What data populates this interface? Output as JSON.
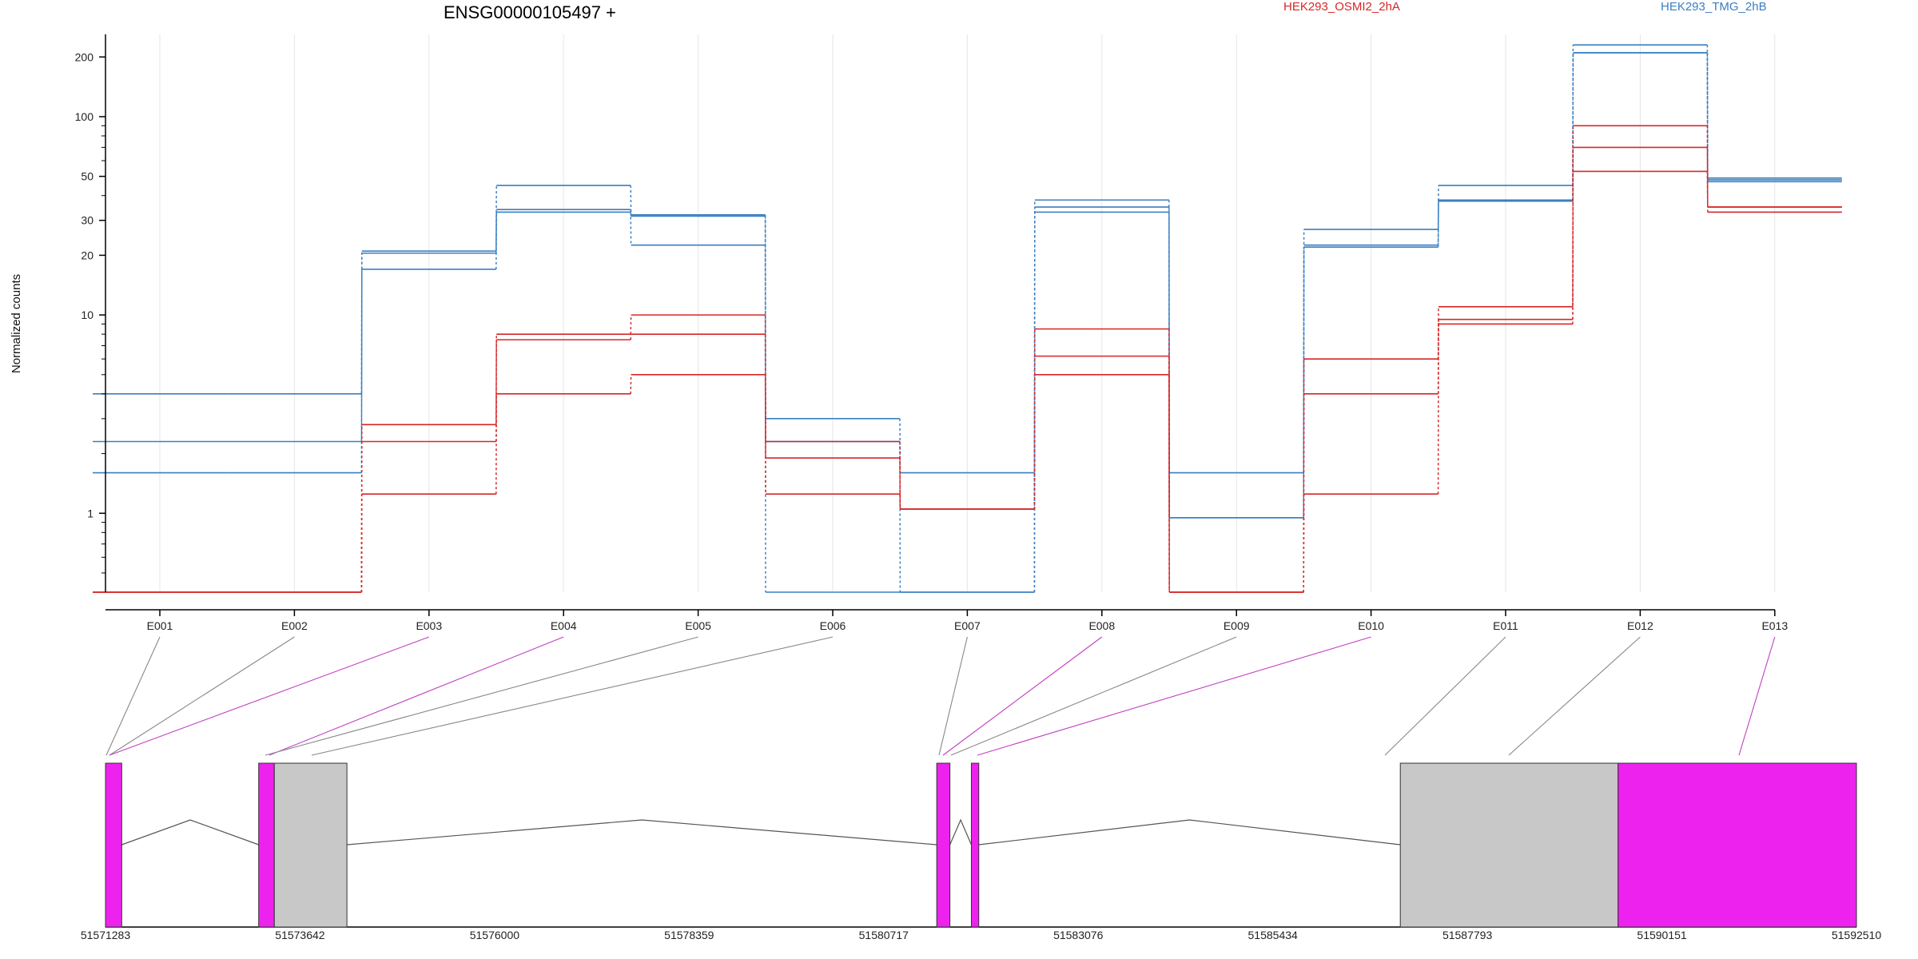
{
  "chart_data": {
    "type": "line",
    "title": "ENSG00000105497 +",
    "ylabel": "Normalized counts",
    "y_scale": "log",
    "ylim": [
      0.4,
      260
    ],
    "y_ticks": [
      1,
      10,
      20,
      30,
      50,
      100,
      200
    ],
    "grid": "vertical",
    "legend_placement": "top",
    "colors": {
      "HEK293_OSMI2_2hA": "#d62728",
      "HEK293_TMG_2hB": "#3a7fc1"
    },
    "categories": [
      "E001",
      "E002",
      "E003",
      "E004",
      "E005",
      "E006",
      "E007",
      "E008",
      "E009",
      "E010",
      "E011",
      "E012",
      "E013"
    ],
    "series": [
      {
        "name": "HEK293_TMG_2hB",
        "values": [
          4.0,
          4.0,
          21,
          45,
          32,
          3.0,
          1.6,
          38,
          0.95,
          27,
          45,
          230,
          49
        ]
      },
      {
        "name": "HEK293_TMG_2hB",
        "values": [
          2.3,
          2.3,
          20.5,
          34,
          31.5,
          2.3,
          0.4,
          35,
          0.95,
          22.5,
          38,
          210,
          48
        ]
      },
      {
        "name": "HEK293_TMG_2hB",
        "values": [
          1.6,
          1.6,
          17,
          33,
          22.5,
          0.4,
          0.4,
          33,
          1.6,
          22,
          37.5,
          210,
          47
        ]
      },
      {
        "name": "HEK293_OSMI2_2hA",
        "values": [
          0.4,
          0.4,
          2.8,
          8.0,
          10.0,
          2.3,
          1.05,
          8.5,
          0.4,
          6.0,
          11.0,
          90,
          35
        ]
      },
      {
        "name": "HEK293_OSMI2_2hA",
        "values": [
          0.4,
          0.4,
          2.3,
          7.5,
          8.0,
          1.9,
          1.05,
          6.2,
          0.4,
          4.0,
          9.5,
          70,
          35
        ]
      },
      {
        "name": "HEK293_OSMI2_2hA",
        "values": [
          0.4,
          0.4,
          1.25,
          4.0,
          5.0,
          1.25,
          1.05,
          5.0,
          0.4,
          1.25,
          9.0,
          53,
          33
        ]
      }
    ],
    "gene_model": {
      "coordinate_labels": [
        "51571283",
        "51573642",
        "51576000",
        "51578359",
        "51580717",
        "51583076",
        "51585434",
        "51587793",
        "51590151",
        "51592510"
      ],
      "xlim": [
        51571283,
        51592510
      ],
      "exon_blocks": [
        {
          "start": 51571283,
          "end": 51571480,
          "kind": "differential",
          "exon": "E001 E002"
        },
        {
          "start": 51573140,
          "end": 51573330,
          "kind": "differential",
          "exon": "E003 E004"
        },
        {
          "start": 51573330,
          "end": 51574210,
          "kind": "normal",
          "exon": "E005 E006"
        },
        {
          "start": 51581360,
          "end": 51581520,
          "kind": "differential",
          "exon": "E007 E008"
        },
        {
          "start": 51581780,
          "end": 51581870,
          "kind": "differential",
          "exon": "E009 E010"
        },
        {
          "start": 51586980,
          "end": 51589620,
          "kind": "normal",
          "exon": "E011 E012"
        },
        {
          "start": 51589620,
          "end": 51592510,
          "kind": "differential",
          "exon": "E013"
        }
      ],
      "colors": {
        "differential": "#ee22ee",
        "normal": "#c8c8c8"
      }
    }
  }
}
